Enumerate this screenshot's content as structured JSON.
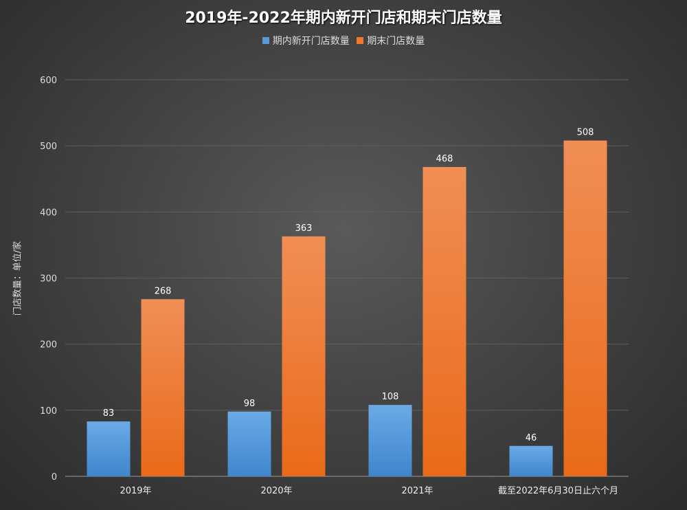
{
  "chart_data": {
    "type": "bar",
    "title": "2019年-2022年期内新开门店和期末门店数量",
    "ylabel": "门店数量：单位/家",
    "xlabel": "",
    "categories": [
      "2019年",
      "2020年",
      "2021年",
      "截至2022年6月30日止六个月"
    ],
    "series": [
      {
        "name": "期内新开门店数量",
        "values": [
          83,
          98,
          108,
          46
        ],
        "color": "#5b9bd5"
      },
      {
        "name": "期末门店数量",
        "values": [
          268,
          363,
          468,
          508
        ],
        "color": "#f0782a"
      }
    ],
    "ylim": [
      0,
      600
    ],
    "yticks": [
      0,
      100,
      200,
      300,
      400,
      500,
      600
    ],
    "grid": true,
    "legend": "top"
  }
}
